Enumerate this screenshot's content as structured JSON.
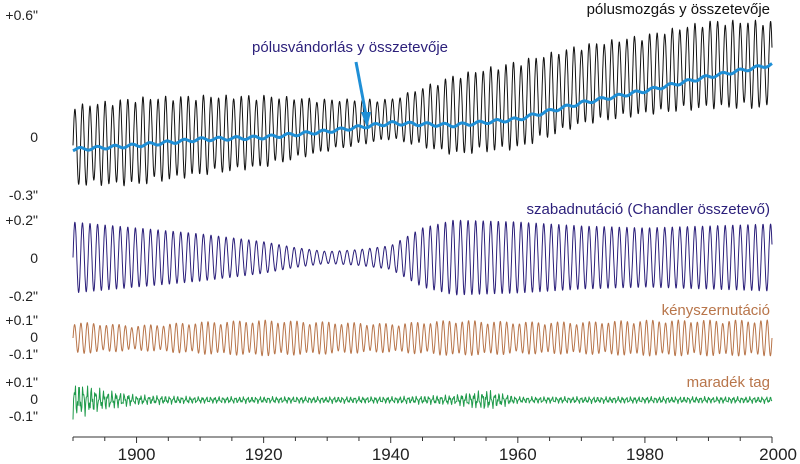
{
  "chart_data": [
    {
      "type": "line",
      "xlim": [
        1890,
        2000
      ],
      "ylim": [
        -0.3,
        0.6
      ],
      "yticks": [
        "+0.6\"",
        "0",
        "-0.3\""
      ],
      "series": [
        {
          "name": "pólusmozgás  y összetevője",
          "color": "#111111",
          "x": [
            1890,
            1900,
            1910,
            1920,
            1930,
            1940,
            1950,
            1960,
            1970,
            1980,
            1990,
            2000
          ],
          "y": [
            -0.05,
            -0.03,
            0.0,
            0.02,
            0.05,
            0.08,
            0.1,
            0.15,
            0.25,
            0.3,
            0.35,
            0.35
          ],
          "amplitude": [
            0.2,
            0.22,
            0.2,
            0.18,
            0.13,
            0.1,
            0.2,
            0.22,
            0.2,
            0.2,
            0.22,
            0.22
          ]
        },
        {
          "name": "pólusvándorlás  y összetevője",
          "color": "#1f8fd6",
          "x": [
            1890,
            1900,
            1910,
            1920,
            1930,
            1940,
            1950,
            1960,
            1970,
            1980,
            1990,
            2000
          ],
          "y": [
            -0.07,
            -0.05,
            -0.02,
            -0.01,
            0.02,
            0.06,
            0.05,
            0.08,
            0.16,
            0.22,
            0.29,
            0.35
          ]
        }
      ],
      "annotations": [
        {
          "text": "pólusmozgás  y összetevője",
          "color": "#111111"
        },
        {
          "text": "pólusvándorlás  y összetevője",
          "color": "#2b1f7a"
        }
      ]
    },
    {
      "type": "line",
      "xlim": [
        1890,
        2000
      ],
      "ylim": [
        -0.2,
        0.2
      ],
      "yticks": [
        "+0.2\"",
        "0",
        "-0.2\""
      ],
      "series": [
        {
          "name": "szabadnutáció (Chandler összetevő)",
          "color": "#2b1f7a",
          "x": [
            1890,
            1900,
            1910,
            1920,
            1925,
            1930,
            1935,
            1940,
            1945,
            1950,
            1960,
            1970,
            1980,
            1990,
            2000
          ],
          "amplitude": [
            0.18,
            0.15,
            0.12,
            0.08,
            0.05,
            0.03,
            0.04,
            0.06,
            0.15,
            0.19,
            0.18,
            0.16,
            0.15,
            0.16,
            0.17
          ]
        }
      ],
      "annotations": [
        {
          "text": "szabadnutáció (Chandler összetevő)",
          "color": "#2b1f7a"
        }
      ]
    },
    {
      "type": "line",
      "xlim": [
        1890,
        2000
      ],
      "ylim": [
        -0.1,
        0.1
      ],
      "yticks": [
        "+0.1\"",
        "0",
        "-0.1\""
      ],
      "series": [
        {
          "name": "kényszernutáció",
          "color": "#b8754a",
          "x": [
            1890,
            1900,
            1910,
            1920,
            1930,
            1940,
            1950,
            1960,
            1970,
            1980,
            1990,
            2000
          ],
          "amplitude": [
            0.09,
            0.07,
            0.09,
            0.1,
            0.09,
            0.08,
            0.1,
            0.09,
            0.09,
            0.1,
            0.1,
            0.1
          ]
        }
      ],
      "annotations": [
        {
          "text": "kényszernutáció",
          "color": "#b8754a"
        }
      ]
    },
    {
      "type": "line",
      "xlim": [
        1890,
        2000
      ],
      "ylim": [
        -0.1,
        0.1
      ],
      "yticks": [
        "+0.1\"",
        "0",
        "-0.1\""
      ],
      "series": [
        {
          "name": "maradék tag",
          "color": "#1e9a4a",
          "x": [
            1890,
            1895,
            1900,
            1910,
            1920,
            1930,
            1940,
            1950,
            1955,
            1960,
            1970,
            1980,
            1990,
            2000
          ],
          "amplitude": [
            0.11,
            0.06,
            0.03,
            0.02,
            0.02,
            0.02,
            0.02,
            0.03,
            0.06,
            0.02,
            0.02,
            0.02,
            0.02,
            0.02
          ]
        }
      ],
      "annotations": [
        {
          "text": "maradék tag",
          "color": "#b8754a"
        }
      ]
    }
  ],
  "x_axis": {
    "ticks": [
      1900,
      1920,
      1940,
      1960,
      1980,
      2000
    ],
    "tick_labels": [
      "1900",
      "1920",
      "1940",
      "1960",
      "1980",
      "2000"
    ]
  }
}
